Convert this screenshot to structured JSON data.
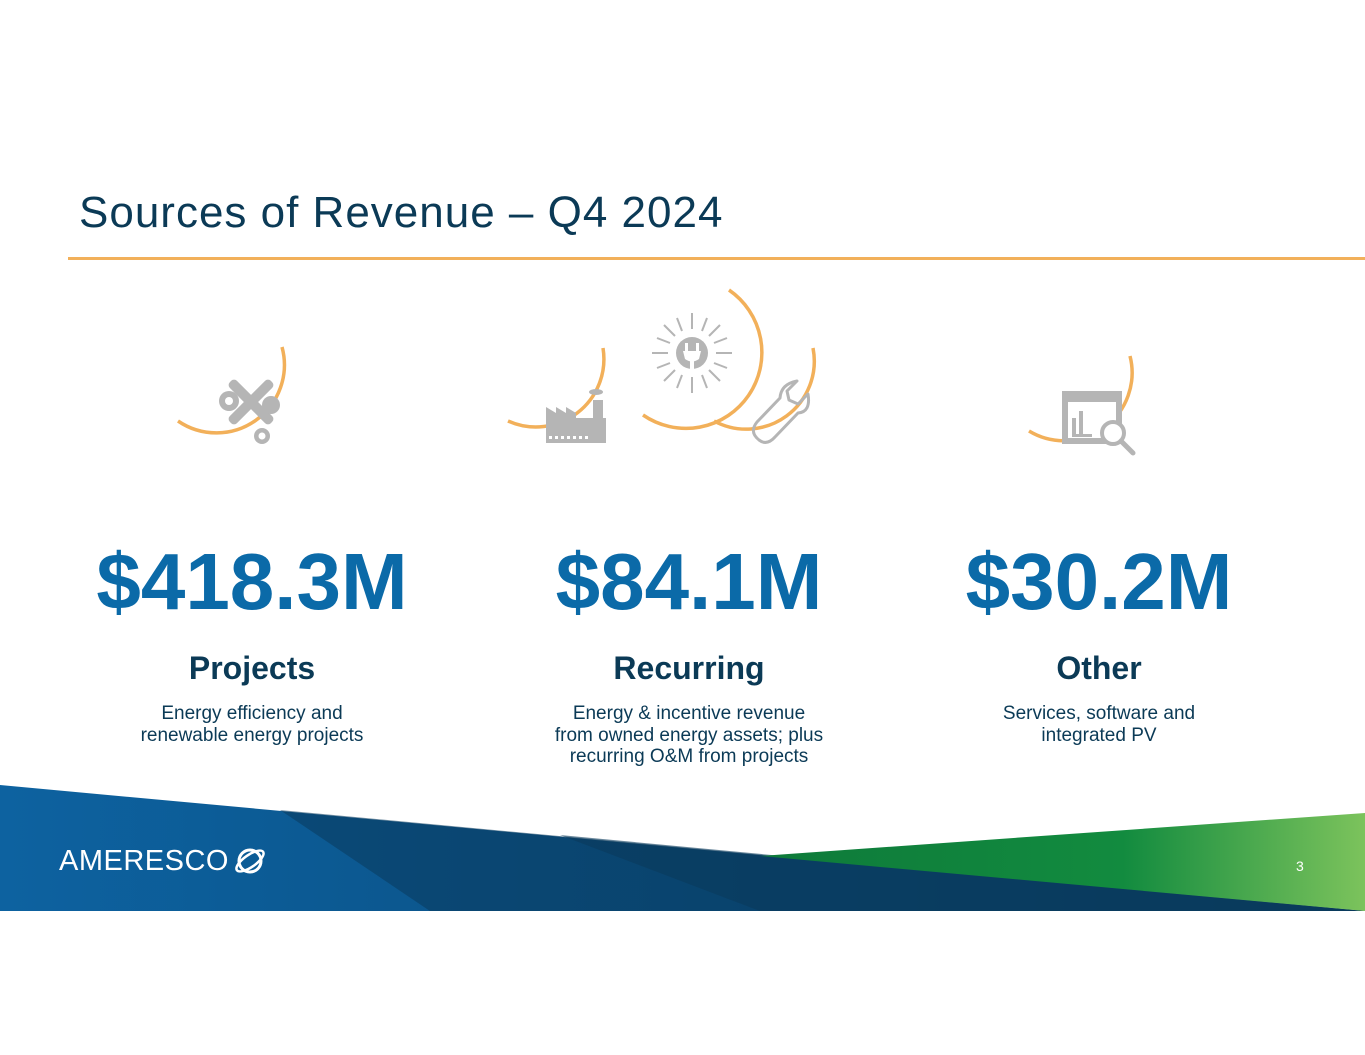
{
  "slide": {
    "title": "Sources of Revenue – Q4 2024",
    "page_number": "3"
  },
  "colors": {
    "title": "#0b3a56",
    "value": "#0b6aa8",
    "accent_ring": "#f2b05a",
    "icon_grey": "#b5b5b5",
    "band_blue_dark": "#0a3a5c",
    "band_blue": "#0d62a0",
    "band_green": "#128b3f",
    "band_green_light": "#7cc35c"
  },
  "categories": [
    {
      "value": "$418.3M",
      "name": "Projects",
      "description": "Energy efficiency and\nrenewable energy projects",
      "icons": [
        "tools-icon"
      ]
    },
    {
      "value": "$84.1M",
      "name": "Recurring",
      "description": "Energy & incentive revenue\nfrom owned energy assets; plus\nrecurring O&M from projects",
      "icons": [
        "factory-icon",
        "sun-plug-icon",
        "wrench-icon"
      ]
    },
    {
      "value": "$30.2M",
      "name": "Other",
      "description": "Services, software and\nintegrated PV",
      "icons": [
        "analytics-search-icon"
      ]
    }
  ],
  "footer": {
    "logo_text": "AMERESCO"
  }
}
